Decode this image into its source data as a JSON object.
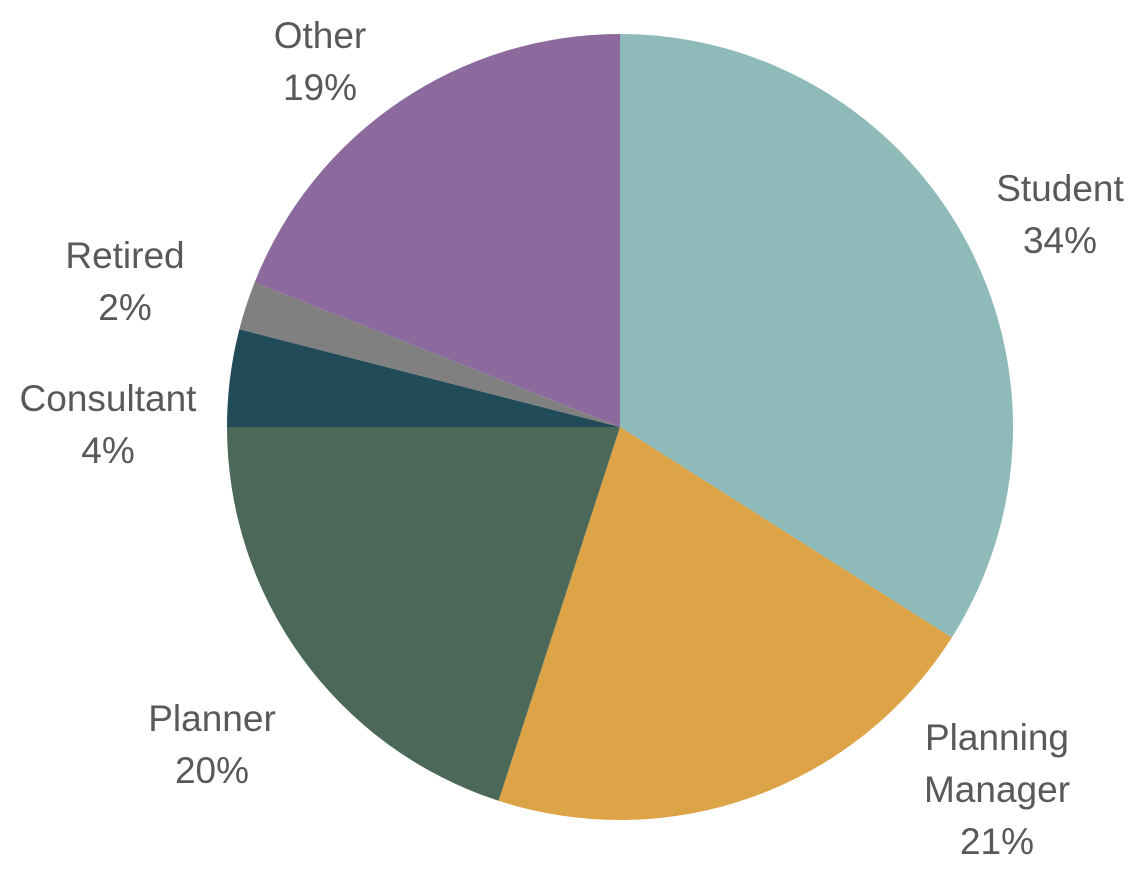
{
  "chart_data": {
    "type": "pie",
    "categories": [
      "Student",
      "Planning Manager",
      "Planner",
      "Consultant",
      "Retired",
      "Other"
    ],
    "values": [
      34,
      21,
      20,
      4,
      2,
      19
    ],
    "value_labels": [
      "34%",
      "21%",
      "20%",
      "4%",
      "2%",
      "19%"
    ],
    "colors": [
      "#8ebbb9",
      "#dda447",
      "#4b6858",
      "#224b5a",
      "#808080",
      "#8c6a9e"
    ]
  }
}
